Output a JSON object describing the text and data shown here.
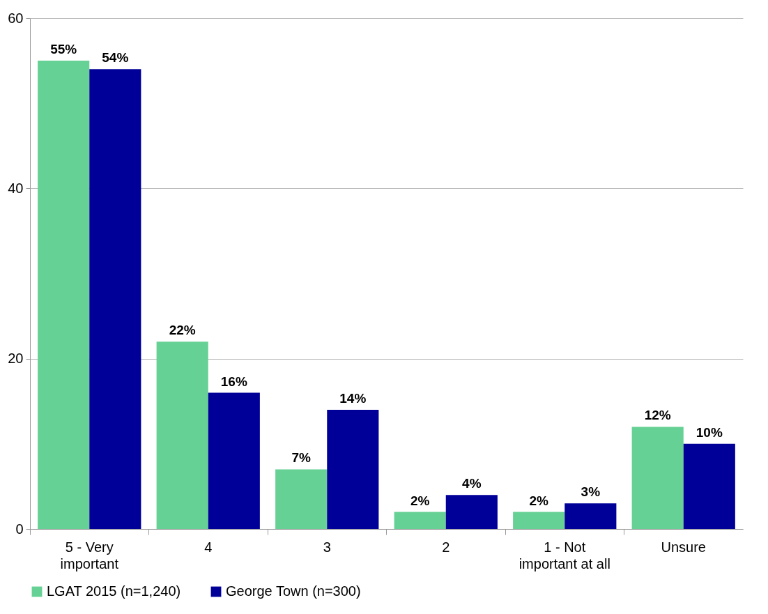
{
  "chart_data": {
    "type": "bar",
    "categories": [
      "5 - Very important",
      "4",
      "3",
      "2",
      "1 - Not important at all",
      "Unsure"
    ],
    "series": [
      {
        "name": "LGAT 2015 (n=1,240)",
        "color": "#66d194",
        "values": [
          55,
          22,
          7,
          2,
          2,
          12
        ],
        "value_labels": [
          "55%",
          "22%",
          "7%",
          "2%",
          "2%",
          "12%"
        ]
      },
      {
        "name": "George Town (n=300)",
        "color": "#000099",
        "values": [
          54,
          16,
          14,
          4,
          3,
          10
        ],
        "value_labels": [
          "54%",
          "16%",
          "14%",
          "4%",
          "3%",
          "10%"
        ]
      }
    ],
    "ylim": [
      0,
      60
    ],
    "yticks": [
      0,
      20,
      40,
      60
    ],
    "grid": "y",
    "legend": "bottom"
  }
}
